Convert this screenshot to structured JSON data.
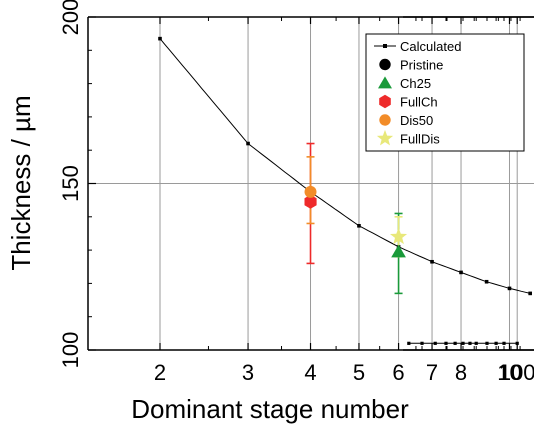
{
  "chart_data": {
    "type": "scatter",
    "xlabel": "Dominant stage number",
    "ylabel": "Thickness / µm",
    "xscale": "log",
    "xlim": [
      2,
      12
    ],
    "xlim_break": [
      15,
      160
    ],
    "ylim": [
      100,
      200
    ],
    "grid": true,
    "legend_position": "top-right",
    "x_ticks": [
      {
        "value": 2,
        "label": "2"
      },
      {
        "value": 3,
        "label": "3"
      },
      {
        "value": 4,
        "label": "4"
      },
      {
        "value": 5,
        "label": "5"
      },
      {
        "value": 6,
        "label": "6"
      },
      {
        "value": 7,
        "label": "7"
      },
      {
        "value": 8,
        "label": "8"
      },
      {
        "value": 10,
        "label": "10"
      }
    ],
    "x_ticks_break": [
      {
        "value": 100,
        "label": "100"
      }
    ],
    "y_ticks": [
      {
        "value": 100,
        "label": "100"
      },
      {
        "value": 150,
        "label": "150"
      },
      {
        "value": 200,
        "label": "200"
      }
    ],
    "calculated": {
      "name": "Calculated",
      "color": "#000000",
      "x": [
        2,
        3,
        4,
        5,
        6,
        7,
        8,
        9,
        10,
        11
      ],
      "y": [
        193.5,
        162,
        147.5,
        137.3,
        131,
        126.5,
        123.3,
        120.5,
        118.5,
        117
      ],
      "x_break": [
        16,
        20,
        25,
        30,
        35,
        40,
        45,
        50,
        60,
        70,
        80,
        100
      ],
      "y_break": [
        102,
        102,
        102,
        102,
        102,
        102,
        102,
        102,
        102,
        102,
        102,
        102
      ]
    },
    "series": [
      {
        "name": "Pristine",
        "marker": "circle",
        "color": "#000000",
        "x": 150,
        "y": 106,
        "yerr_low": 100,
        "yerr_high": 112
      },
      {
        "name": "Ch25",
        "marker": "triangle",
        "color": "#1a9a3a",
        "x": 6,
        "y": 129.5,
        "yerr_low": 117,
        "yerr_high": 141
      },
      {
        "name": "FullCh",
        "marker": "hexagon",
        "color": "#ee2a2a",
        "x": 4,
        "y": 144.5,
        "yerr_low": 126,
        "yerr_high": 162
      },
      {
        "name": "Dis50",
        "marker": "circle",
        "color": "#f28c28",
        "x": 4,
        "y": 147.5,
        "yerr_low": 138,
        "yerr_high": 158
      },
      {
        "name": "FullDis",
        "marker": "star",
        "color": "#e8e87a",
        "x": 6,
        "y": 134,
        "yerr_low": 128,
        "yerr_high": 140
      }
    ]
  }
}
